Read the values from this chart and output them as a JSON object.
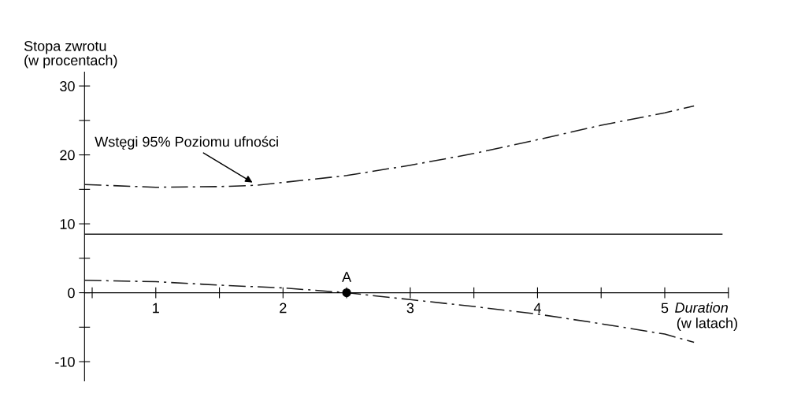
{
  "chart_data": {
    "type": "line",
    "ylabel": "Stopa zwrotu\n(w procentach)",
    "xlabel": "Duration\n(w latach)",
    "xlim": [
      0.44,
      5.5
    ],
    "ylim": [
      -12.8,
      32
    ],
    "xticks": [
      {
        "value": 0.5,
        "label": null
      },
      1,
      {
        "value": 1.5,
        "label": null
      },
      2,
      {
        "value": 2.5,
        "label": null
      },
      3,
      {
        "value": 3.5,
        "label": null
      },
      4,
      {
        "value": 4.5,
        "label": null
      },
      5,
      {
        "value": 5.5,
        "label": null
      }
    ],
    "yticks": [
      -10,
      {
        "value": -5,
        "label": null
      },
      0,
      {
        "value": 5,
        "label": null
      },
      10,
      {
        "value": 15,
        "label": null
      },
      20,
      {
        "value": 25,
        "label": null
      },
      30
    ],
    "grid": false,
    "series": [
      {
        "color": "#1a1a1a",
        "line_style": "dashdot",
        "x": [
          0.44,
          1,
          1.5,
          1.8,
          2,
          2.5,
          3,
          3.5,
          4,
          4.5,
          5,
          5.23
        ],
        "values": [
          15.7,
          15.3,
          15.4,
          15.6,
          16.0,
          17.0,
          18.5,
          20.2,
          22.2,
          24.3,
          26.1,
          27.1
        ]
      },
      {
        "color": "#1a1a1a",
        "line_style": "dashdot",
        "x": [
          0.44,
          1,
          1.5,
          2,
          2.5,
          3,
          3.5,
          4,
          4.5,
          5,
          5.23
        ],
        "values": [
          1.8,
          1.6,
          1.1,
          0.7,
          0,
          -1.0,
          -2.0,
          -3.1,
          -4.5,
          -6.0,
          -7.2
        ]
      },
      {
        "type": "scatter",
        "color": "#000000",
        "marker": "circle",
        "x": [
          2.5
        ],
        "values": [
          0
        ]
      }
    ],
    "ref_lines": [
      {
        "axis": "y",
        "value": 8.5,
        "label": null,
        "color": "#1a1a1a",
        "line_style": "solid"
      }
    ],
    "annotations": [
      {
        "text": "Wstęgi 95% Poziomu ufności",
        "x": 1.76,
        "y": 16.0
      },
      {
        "text": "A",
        "x": 2.5,
        "y": 0
      }
    ]
  }
}
